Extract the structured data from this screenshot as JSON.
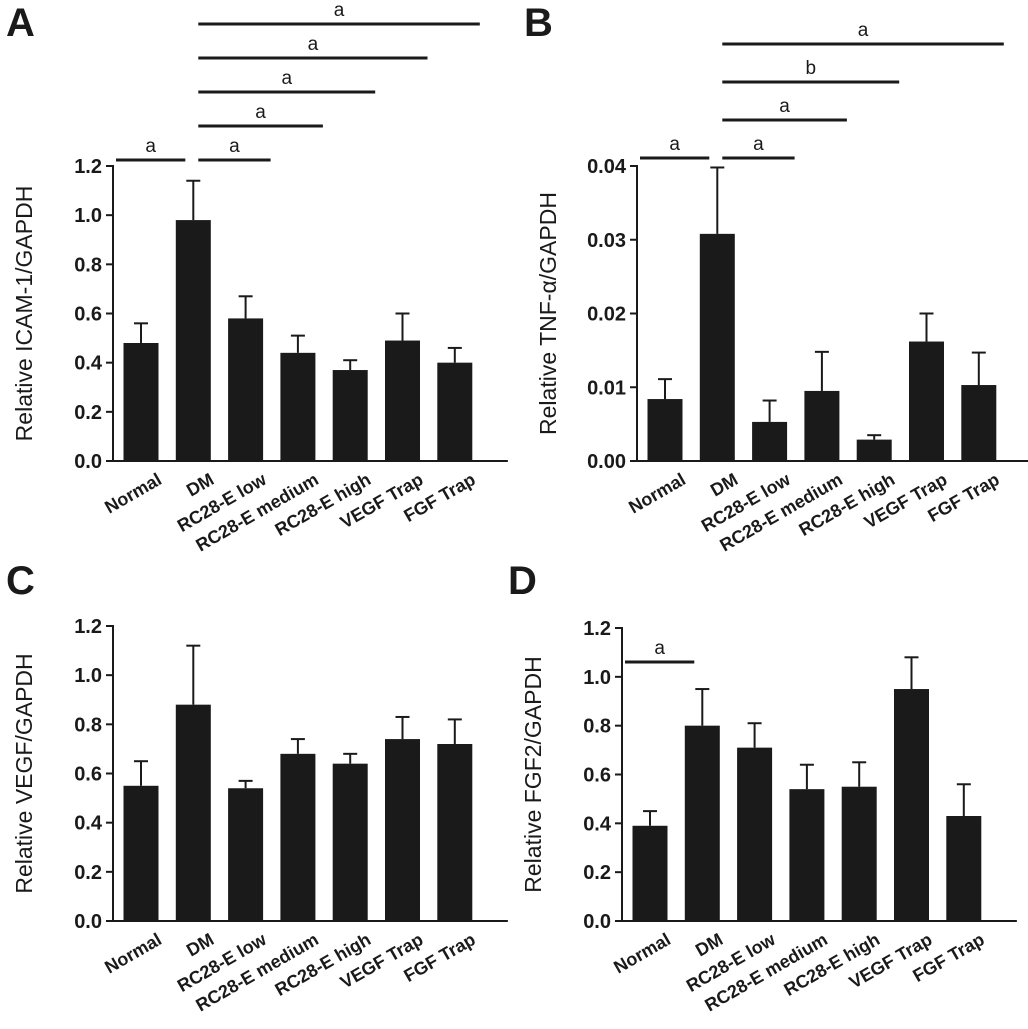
{
  "chart_data": [
    {
      "type": "bar",
      "panel_label": "A",
      "ylabel": "Relative ICAM-1/GAPDH",
      "categories": [
        "Normal",
        "DM",
        "RC28-E low",
        "RC28-E medium",
        "RC28-E high",
        "VEGF Trap",
        "FGF Trap"
      ],
      "values": [
        0.48,
        0.98,
        0.58,
        0.44,
        0.37,
        0.49,
        0.4
      ],
      "errors": [
        0.08,
        0.16,
        0.09,
        0.07,
        0.04,
        0.11,
        0.06
      ],
      "ylim": [
        0,
        1.2
      ],
      "yticks": [
        "0.0",
        "0.2",
        "0.4",
        "0.6",
        "0.8",
        "1.0",
        "1.2"
      ],
      "significance": [
        {
          "from": 0,
          "to": 1,
          "label": "a"
        },
        {
          "from": 1,
          "to": 2,
          "label": "a"
        },
        {
          "from": 1,
          "to": 3,
          "label": "a"
        },
        {
          "from": 1,
          "to": 4,
          "label": "a"
        },
        {
          "from": 1,
          "to": 5,
          "label": "a"
        },
        {
          "from": 1,
          "to": 6,
          "label": "a"
        }
      ],
      "color": "#1a1a1a"
    },
    {
      "type": "bar",
      "panel_label": "B",
      "ylabel": "Relative TNF-α/GAPDH",
      "categories": [
        "Normal",
        "DM",
        "RC28-E low",
        "RC28-E medium",
        "RC28-E high",
        "VEGF Trap",
        "FGF Trap"
      ],
      "values": [
        0.0084,
        0.0308,
        0.0053,
        0.0095,
        0.0029,
        0.0162,
        0.0103
      ],
      "errors": [
        0.0027,
        0.009,
        0.0029,
        0.0053,
        0.0006,
        0.0038,
        0.0044
      ],
      "ylim": [
        0,
        0.04
      ],
      "yticks": [
        "0.00",
        "0.01",
        "0.02",
        "0.03",
        "0.04"
      ],
      "significance": [
        {
          "from": 0,
          "to": 1,
          "label": "a"
        },
        {
          "from": 1,
          "to": 2,
          "label": "a"
        },
        {
          "from": 1,
          "to": 3,
          "label": "a"
        },
        {
          "from": 1,
          "to": 4,
          "label": "b"
        },
        {
          "from": 1,
          "to": 6,
          "label": "a"
        }
      ],
      "color": "#1a1a1a"
    },
    {
      "type": "bar",
      "panel_label": "C",
      "ylabel": "Relative VEGF/GAPDH",
      "categories": [
        "Normal",
        "DM",
        "RC28-E low",
        "RC28-E medium",
        "RC28-E high",
        "VEGF Trap",
        "FGF Trap"
      ],
      "values": [
        0.55,
        0.88,
        0.54,
        0.68,
        0.64,
        0.74,
        0.72
      ],
      "errors": [
        0.1,
        0.24,
        0.03,
        0.06,
        0.04,
        0.09,
        0.1
      ],
      "ylim": [
        0,
        1.2
      ],
      "yticks": [
        "0.0",
        "0.2",
        "0.4",
        "0.6",
        "0.8",
        "1.0",
        "1.2"
      ],
      "significance": [],
      "color": "#1a1a1a"
    },
    {
      "type": "bar",
      "panel_label": "D",
      "ylabel": "Relative FGF2/GAPDH",
      "categories": [
        "Normal",
        "DM",
        "RC28-E low",
        "RC28-E medium",
        "RC28-E high",
        "VEGF Trap",
        "FGF Trap"
      ],
      "values": [
        0.39,
        0.8,
        0.71,
        0.54,
        0.55,
        0.95,
        0.43
      ],
      "errors": [
        0.06,
        0.15,
        0.1,
        0.1,
        0.1,
        0.13,
        0.13
      ],
      "ylim": [
        0,
        1.2
      ],
      "yticks": [
        "0.0",
        "0.2",
        "0.4",
        "0.6",
        "0.8",
        "1.0",
        "1.2"
      ],
      "significance": [
        {
          "from": 0,
          "to": 1,
          "label": "a"
        }
      ],
      "color": "#1a1a1a"
    }
  ]
}
